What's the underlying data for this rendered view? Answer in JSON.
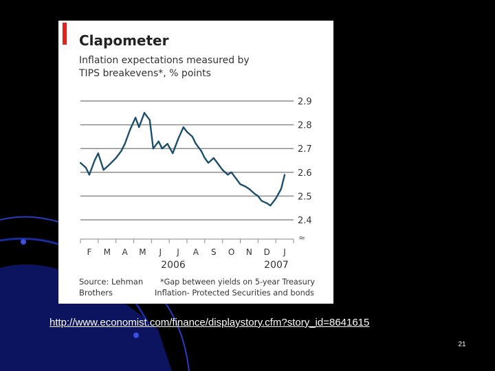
{
  "slide": {
    "url": "http://www.economist.com/finance/displaystory.cfm?story_id=8641615",
    "page_number": "21",
    "colors": {
      "background": "#000000",
      "swoosh": "#1b2a9a",
      "accent": "#e2231a"
    }
  },
  "chart_data": {
    "type": "line",
    "title": "Clapometer",
    "subtitle_lines": [
      "Inflation expectations measured by",
      "TIPS breakevens*, % points"
    ],
    "ylim": [
      2.4,
      2.9
    ],
    "yticks": [
      "2.9",
      "2.8",
      "2.7",
      "2.6",
      "2.5",
      "2.4"
    ],
    "month_labels": [
      "F",
      "M",
      "A",
      "M",
      "J",
      "J",
      "A",
      "S",
      "O",
      "N",
      "D",
      "J"
    ],
    "year_labels": [
      "2006",
      "2007"
    ],
    "axis_break_symbol": "≈",
    "source_lines": [
      "Source: Lehman",
      "Brothers"
    ],
    "footnote_lines": [
      "*Gap between yields on 5-year Treasury",
      "Inflation- Protected Securities and bonds"
    ],
    "series": [
      {
        "color": "#1c4f6b",
        "x_unit": "months after 1 Feb 2006",
        "x": [
          0,
          0.3,
          0.5,
          0.8,
          1.0,
          1.3,
          1.6,
          2.0,
          2.3,
          2.5,
          2.8,
          3.1,
          3.3,
          3.6,
          3.9,
          4.1,
          4.4,
          4.6,
          4.9,
          5.2,
          5.5,
          5.8,
          6.0,
          6.3,
          6.5,
          6.8,
          7.0,
          7.2,
          7.5,
          7.8,
          8.0,
          8.3,
          8.5,
          8.8,
          9.0,
          9.3,
          9.5,
          9.8,
          10.0,
          10.2,
          10.5,
          10.7,
          11.0,
          11.3,
          11.5
        ],
        "y": [
          2.64,
          2.62,
          2.59,
          2.65,
          2.68,
          2.61,
          2.63,
          2.66,
          2.69,
          2.72,
          2.78,
          2.83,
          2.79,
          2.85,
          2.82,
          2.7,
          2.73,
          2.7,
          2.72,
          2.68,
          2.74,
          2.79,
          2.77,
          2.75,
          2.72,
          2.69,
          2.66,
          2.64,
          2.66,
          2.63,
          2.61,
          2.59,
          2.6,
          2.57,
          2.55,
          2.54,
          2.53,
          2.51,
          2.5,
          2.48,
          2.47,
          2.46,
          2.49,
          2.53,
          2.59
        ]
      }
    ]
  }
}
